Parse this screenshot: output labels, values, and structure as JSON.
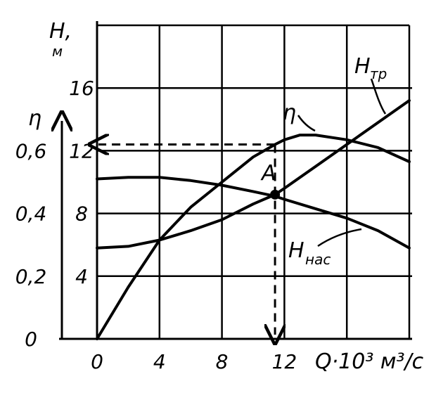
{
  "chart_data": {
    "type": "line",
    "x_axis": {
      "label": "Q·10³ м³/с",
      "range": [
        0,
        20
      ],
      "ticks": [
        "0",
        "4",
        "8",
        "12"
      ]
    },
    "y_axis_H": {
      "label": "H,",
      "unit": "м",
      "range": [
        0,
        20
      ],
      "ticks": [
        "4",
        "8",
        "12",
        "16"
      ]
    },
    "y_axis_eta": {
      "label": "η",
      "range": [
        0,
        0.6
      ],
      "ticks": [
        "0",
        "0,2",
        "0,4",
        "0,6"
      ]
    },
    "grid": true,
    "series": [
      {
        "name": "Hтр",
        "label_main": "H",
        "label_sub": "тр",
        "axis": "H",
        "x": [
          0,
          2,
          4,
          6,
          8,
          10,
          11.4,
          12,
          14,
          16,
          18,
          20
        ],
        "y": [
          5.8,
          5.9,
          6.3,
          6.9,
          7.6,
          8.6,
          9.2,
          9.6,
          11.0,
          12.4,
          13.8,
          15.2
        ]
      },
      {
        "name": "Hнас",
        "label_main": "H",
        "label_sub": "нас",
        "axis": "H",
        "x": [
          0,
          2,
          4,
          6,
          8,
          10,
          11.4,
          12,
          14,
          16,
          18,
          20
        ],
        "y": [
          10.2,
          10.3,
          10.3,
          10.1,
          9.8,
          9.4,
          9.1,
          8.9,
          8.3,
          7.7,
          6.9,
          5.8
        ]
      },
      {
        "name": "η",
        "label_main": "η",
        "label_sub": "",
        "axis": "H",
        "x": [
          0,
          2,
          4,
          6,
          8,
          10,
          11.4,
          12,
          13,
          14,
          16,
          18,
          20
        ],
        "y": [
          0,
          3.3,
          6.3,
          8.4,
          10.0,
          11.6,
          12.4,
          12.7,
          13.0,
          13.0,
          12.7,
          12.2,
          11.3
        ]
      }
    ],
    "operating_point": {
      "label": "A",
      "x": 11.4,
      "y": 9.2,
      "eta_point_y": 12.4
    }
  }
}
